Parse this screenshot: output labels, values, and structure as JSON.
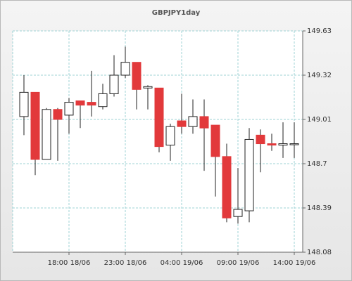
{
  "chart_data": {
    "type": "candlestick",
    "title": "GBPJPY1day",
    "categories": [
      null,
      null,
      null,
      null,
      "18:00 18/06",
      null,
      null,
      null,
      null,
      "23:00 18/06",
      null,
      null,
      null,
      null,
      "04:00 19/06",
      null,
      null,
      null,
      null,
      "09:00 19/06",
      null,
      null,
      null,
      null,
      "14:00 19/06"
    ],
    "open": [
      149.03,
      149.2,
      148.73,
      149.08,
      149.04,
      149.14,
      149.13,
      149.1,
      149.19,
      149.32,
      149.41,
      149.23,
      149.23,
      148.83,
      149.0,
      148.96,
      149.03,
      148.97,
      148.75,
      148.33,
      148.37,
      148.9,
      148.84,
      148.83,
      148.84
    ],
    "high": [
      149.32,
      149.2,
      149.09,
      149.09,
      149.16,
      149.14,
      149.35,
      149.26,
      149.46,
      149.52,
      149.41,
      149.25,
      149.23,
      148.98,
      149.19,
      149.15,
      149.15,
      148.97,
      148.84,
      148.67,
      148.95,
      148.94,
      148.91,
      148.99,
      148.99
    ],
    "low": [
      148.9,
      148.62,
      148.73,
      148.72,
      148.91,
      148.95,
      149.03,
      149.08,
      149.17,
      149.3,
      149.08,
      149.08,
      148.78,
      148.72,
      148.91,
      148.91,
      148.65,
      148.47,
      148.29,
      148.28,
      148.29,
      148.64,
      148.79,
      148.74,
      148.74
    ],
    "close": [
      149.2,
      148.73,
      149.08,
      149.01,
      149.13,
      149.11,
      149.11,
      149.19,
      149.32,
      149.41,
      149.22,
      149.24,
      148.82,
      148.96,
      148.96,
      149.03,
      148.95,
      148.75,
      148.32,
      148.38,
      148.87,
      148.84,
      148.83,
      148.84,
      148.84
    ],
    "up_color": "#ffffff",
    "down_color": "#e2393b",
    "ylim": [
      148.08,
      149.63
    ],
    "yticks": [
      148.08,
      148.39,
      148.7,
      149.01,
      149.32,
      149.63
    ],
    "grid": true
  }
}
